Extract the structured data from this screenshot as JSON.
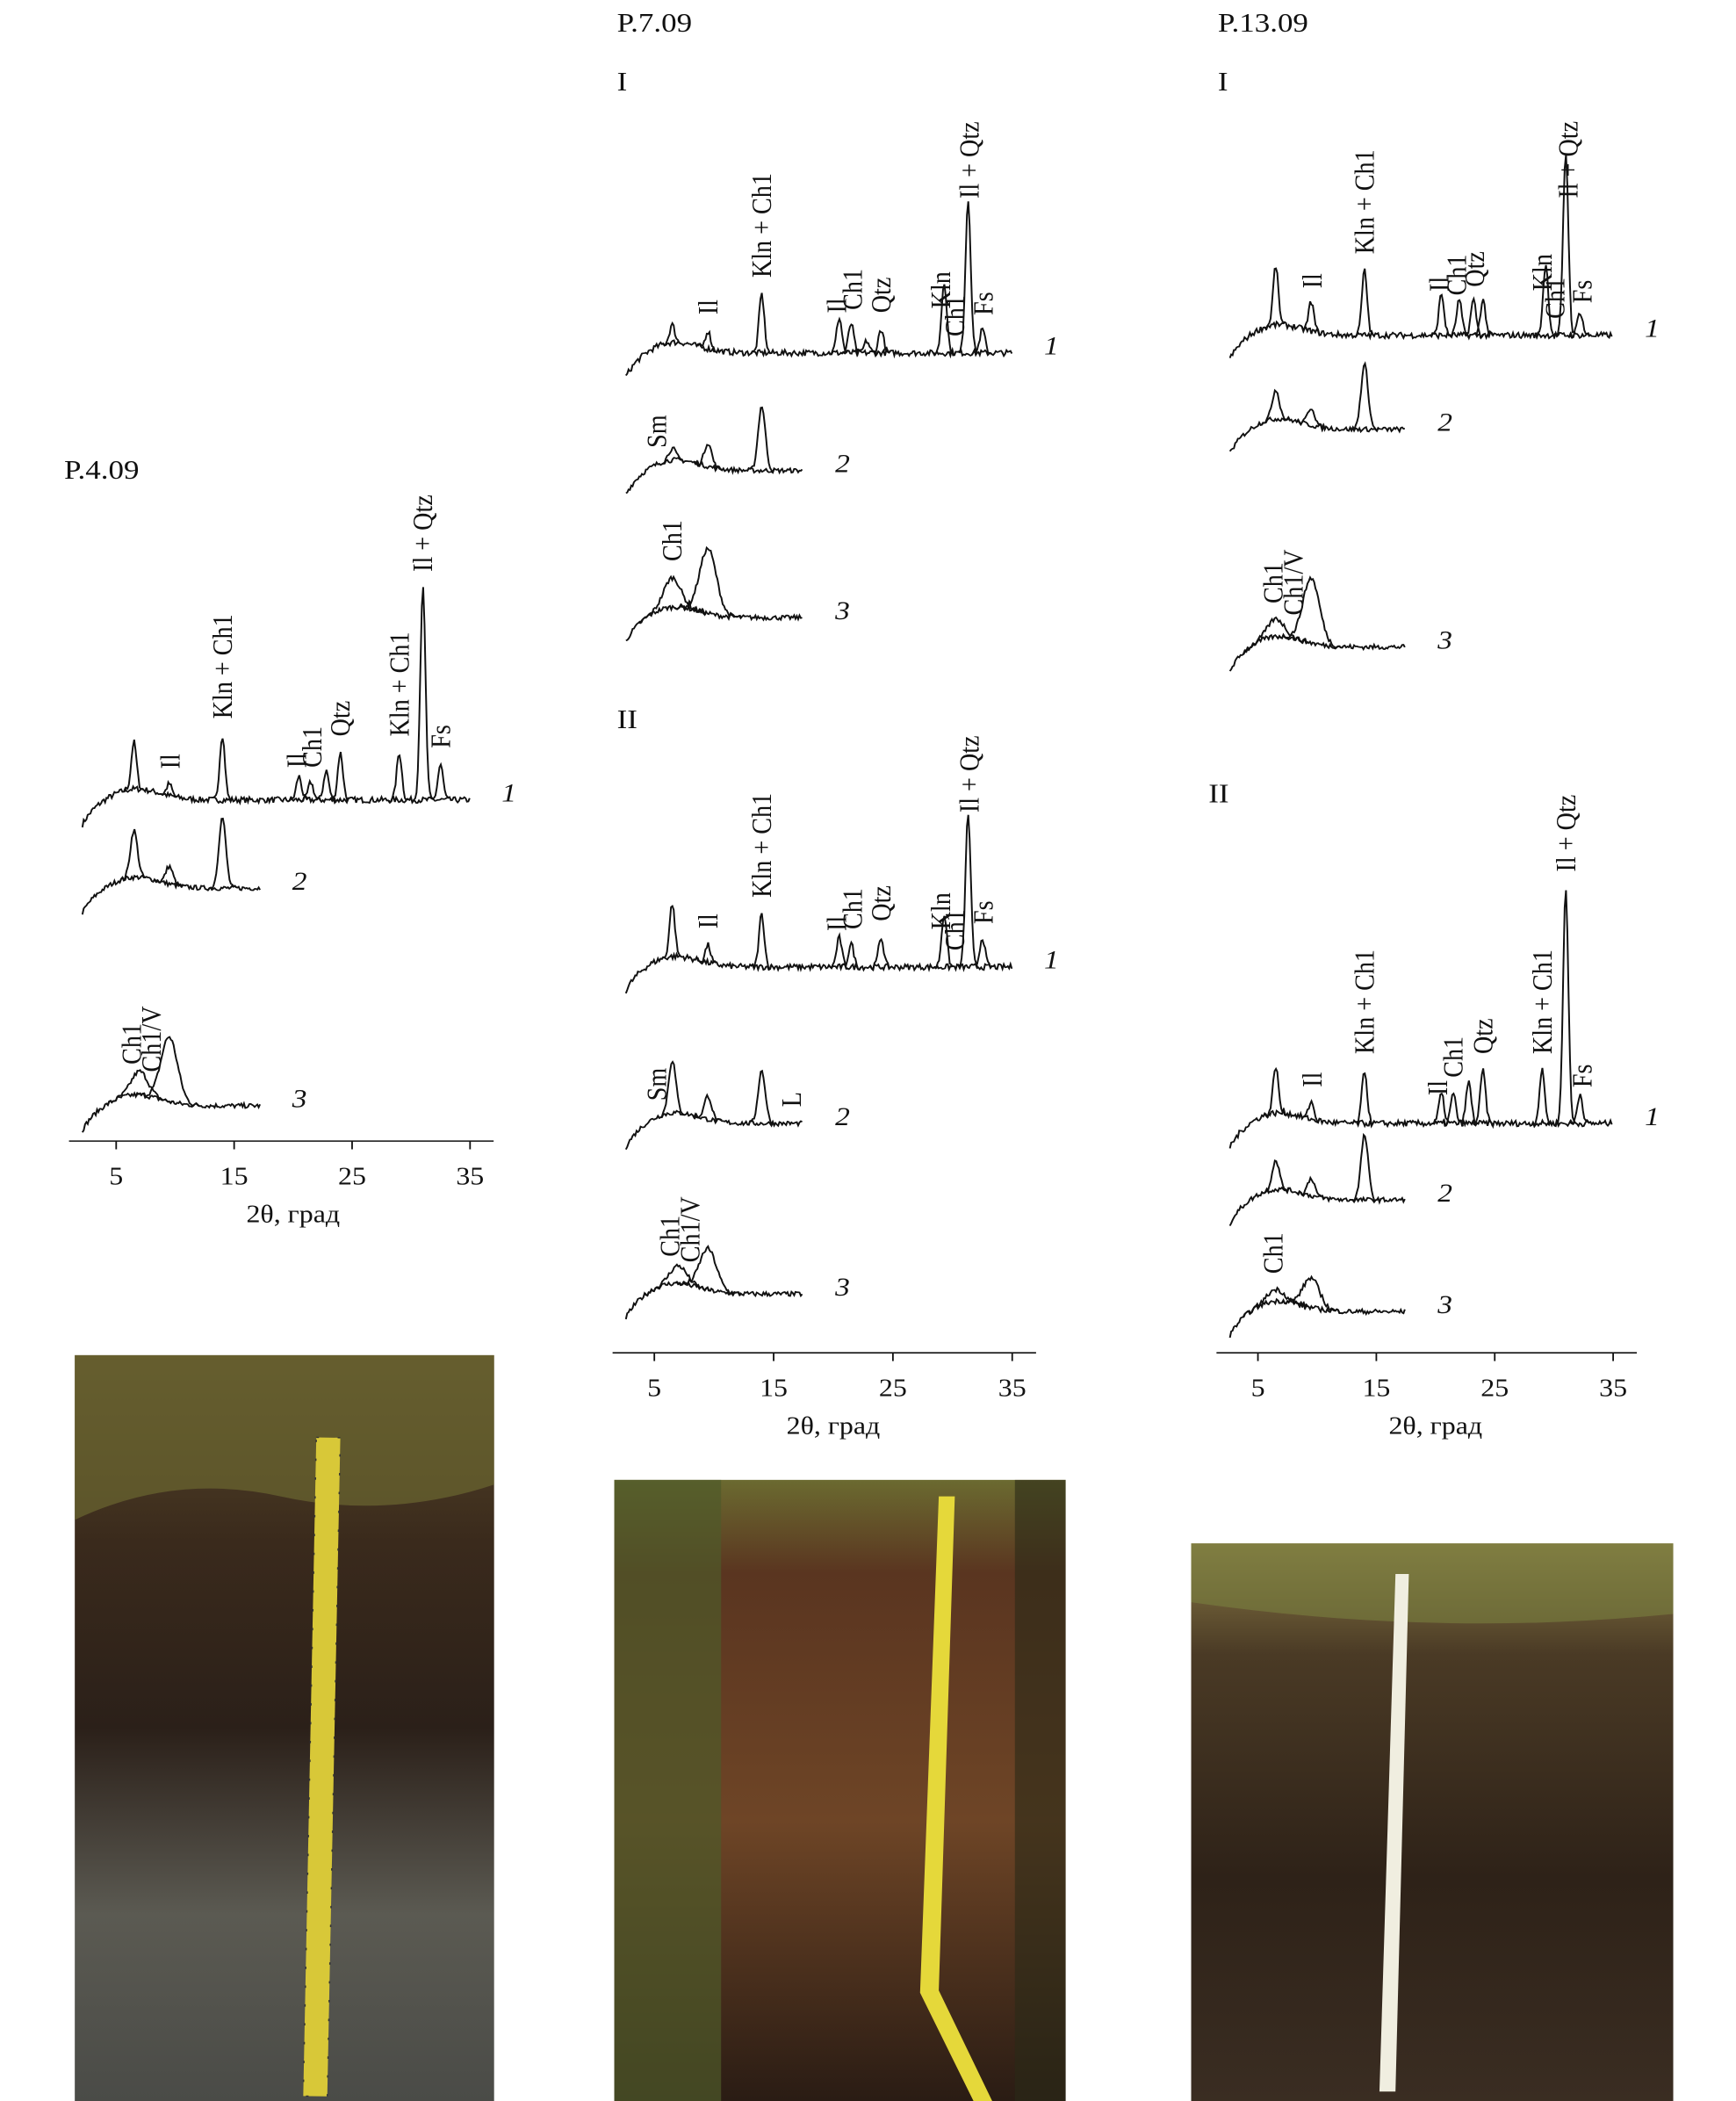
{
  "panels": [
    {
      "title": "P.4.09",
      "axis": {
        "xlim": [
          1,
          37
        ],
        "ticks": [
          5,
          15,
          25,
          35
        ],
        "label": "2θ, град"
      },
      "sections": [
        {
          "traces": [
            {
              "label": "1",
              "peaks": [
                [
                  6.5,
                  40
                ],
                [
                  9.5,
                  10
                ],
                [
                  14,
                  55
                ],
                [
                  20.5,
                  20
                ],
                [
                  21.5,
                  15
                ],
                [
                  22.8,
                  25
                ],
                [
                  24,
                  40
                ],
                [
                  29,
                  40
                ],
                [
                  31,
                  180
                ],
                [
                  32.5,
                  30
                ]
              ],
              "annotations": [
                {
                  "text": "Il",
                  "pos": 9.6
                },
                {
                  "text": "Kln + Ch1",
                  "pos": 14
                },
                {
                  "text": "Il",
                  "pos": 20.3
                },
                {
                  "text": "Ch1",
                  "pos": 21.6
                },
                {
                  "text": "Qtz",
                  "pos": 24
                },
                {
                  "text": "Kln + Ch1",
                  "pos": 29
                },
                {
                  "text": "Il + Qtz",
                  "pos": 31
                },
                {
                  "text": "Fs",
                  "pos": 32.5
                }
              ]
            },
            {
              "label": "2",
              "peaks": [
                [
                  6.5,
                  40
                ],
                [
                  9.5,
                  15
                ],
                [
                  14,
                  60
                ]
              ],
              "annotations": []
            },
            {
              "label": "3",
              "peaks": [
                [
                  7,
                  20
                ],
                [
                  9.5,
                  55
                ]
              ],
              "annotations": [
                {
                  "text": "Ch1",
                  "pos": 6.3
                },
                {
                  "text": "Ch1/V",
                  "pos": 8
                }
              ]
            }
          ]
        }
      ]
    },
    {
      "title": "P.7.09",
      "axis": {
        "xlim": [
          1.5,
          37
        ],
        "ticks": [
          5,
          15,
          25,
          35
        ],
        "label": "2θ, град"
      },
      "sections": [
        {
          "label": "I",
          "traces": [
            {
              "label": "1",
              "peaks": [
                [
                  6.5,
                  15
                ],
                [
                  9.5,
                  15
                ],
                [
                  14,
                  50
                ],
                [
                  20.5,
                  30
                ],
                [
                  21.5,
                  25
                ],
                [
                  22.8,
                  10
                ],
                [
                  24,
                  20
                ],
                [
                  29.3,
                  60
                ],
                [
                  31.3,
                  130
                ],
                [
                  32.5,
                  20
                ]
              ],
              "annotations": [
                {
                  "text": "Il",
                  "pos": 9.5
                },
                {
                  "text": "Kln + Ch1",
                  "pos": 14
                },
                {
                  "text": "Il",
                  "pos": 20.3
                },
                {
                  "text": "Ch1",
                  "pos": 21.6
                },
                {
                  "text": "Qtz",
                  "pos": 24
                },
                {
                  "text": "Kln",
                  "pos": 29
                },
                {
                  "text": "Ch1",
                  "pos": 30.2
                },
                {
                  "text": "Il + Qtz",
                  "pos": 31.4
                },
                {
                  "text": "Fs",
                  "pos": 32.6
                }
              ]
            },
            {
              "label": "2",
              "peaks": [
                [
                  6.5,
                  10
                ],
                [
                  9.5,
                  20
                ],
                [
                  14,
                  55
                ]
              ],
              "annotations": [
                {
                  "text": "Sm",
                  "pos": 5.2
                }
              ]
            },
            {
              "label": "3",
              "peaks": [
                [
                  6.5,
                  25
                ],
                [
                  9.5,
                  55
                ]
              ],
              "annotations": [
                {
                  "text": "Ch1",
                  "pos": 6.5
                }
              ]
            }
          ]
        },
        {
          "label": "II",
          "traces": [
            {
              "label": "1",
              "peaks": [
                [
                  6.5,
                  45
                ],
                [
                  9.5,
                  15
                ],
                [
                  14,
                  45
                ],
                [
                  20.5,
                  25
                ],
                [
                  21.5,
                  20
                ],
                [
                  24,
                  25
                ],
                [
                  29.3,
                  45
                ],
                [
                  31.3,
                  130
                ],
                [
                  32.5,
                  25
                ]
              ],
              "annotations": [
                {
                  "text": "Il",
                  "pos": 9.5
                },
                {
                  "text": "Kln + Ch1",
                  "pos": 14
                },
                {
                  "text": "Il",
                  "pos": 20.3
                },
                {
                  "text": "Ch1",
                  "pos": 21.6
                },
                {
                  "text": "Qtz",
                  "pos": 24
                },
                {
                  "text": "Kln",
                  "pos": 29
                },
                {
                  "text": "Ch1",
                  "pos": 30.2
                },
                {
                  "text": "Il + Qtz",
                  "pos": 31.4
                },
                {
                  "text": "Fs",
                  "pos": 32.6
                }
              ]
            },
            {
              "label": "2",
              "peaks": [
                [
                  6.5,
                  45
                ],
                [
                  9.5,
                  20
                ],
                [
                  14,
                  45
                ]
              ],
              "annotations": [
                {
                  "text": "Sm",
                  "pos": 5.2
                },
                {
                  "text": "L",
                  "pos": 16.5
                }
              ]
            },
            {
              "label": "3",
              "peaks": [
                [
                  7,
                  15
                ],
                [
                  9.5,
                  35
                ]
              ],
              "annotations": [
                {
                  "text": "Ch1",
                  "pos": 6.3
                },
                {
                  "text": "Ch1/V",
                  "pos": 8
                }
              ]
            }
          ]
        }
      ]
    },
    {
      "title": "P.13.09",
      "axis": {
        "xlim": [
          1.5,
          37
        ],
        "ticks": [
          5,
          15,
          25,
          35
        ],
        "label": "2θ, град"
      },
      "sections": [
        {
          "label": "I",
          "traces": [
            {
              "label": "1",
              "peaks": [
                [
                  6.5,
                  50
                ],
                [
                  9.5,
                  25
                ],
                [
                  14,
                  55
                ],
                [
                  20.5,
                  35
                ],
                [
                  22,
                  30
                ],
                [
                  23.2,
                  30
                ],
                [
                  24,
                  30
                ],
                [
                  29.3,
                  60
                ],
                [
                  31,
                  155
                ],
                [
                  32.2,
                  20
                ]
              ],
              "annotations": [
                {
                  "text": "Il",
                  "pos": 9.6
                },
                {
                  "text": "Kln + Ch1",
                  "pos": 14
                },
                {
                  "text": "Il",
                  "pos": 20.3
                },
                {
                  "text": "Ch1",
                  "pos": 21.8
                },
                {
                  "text": "Qtz",
                  "pos": 23.3
                },
                {
                  "text": "Kln",
                  "pos": 29
                },
                {
                  "text": "Ch1",
                  "pos": 30.1
                },
                {
                  "text": "Il + Qtz",
                  "pos": 31.2
                },
                {
                  "text": "Fs",
                  "pos": 32.4
                }
              ]
            },
            {
              "label": "2",
              "peaks": [
                [
                  6.5,
                  25
                ],
                [
                  9.5,
                  15
                ],
                [
                  14,
                  55
                ]
              ],
              "annotations": []
            },
            {
              "label": "3",
              "peaks": [
                [
                  6.5,
                  15
                ],
                [
                  9.5,
                  55
                ]
              ],
              "annotations": [
                {
                  "text": "Ch1",
                  "pos": 6.3
                },
                {
                  "text": "Ch1/V",
                  "pos": 8
                }
              ]
            }
          ]
        },
        {
          "label": "II",
          "traces": [
            {
              "label": "1",
              "peaks": [
                [
                  6.5,
                  40
                ],
                [
                  9.5,
                  15
                ],
                [
                  14,
                  45
                ],
                [
                  20.5,
                  25
                ],
                [
                  21.5,
                  25
                ],
                [
                  22.8,
                  35
                ],
                [
                  24,
                  45
                ],
                [
                  29,
                  45
                ],
                [
                  31,
                  200
                ],
                [
                  32.2,
                  25
                ]
              ],
              "annotations": [
                {
                  "text": "Il",
                  "pos": 9.6
                },
                {
                  "text": "Kln + Ch1",
                  "pos": 14
                },
                {
                  "text": "Il",
                  "pos": 20.2
                },
                {
                  "text": "Ch1",
                  "pos": 21.5
                },
                {
                  "text": "Qtz",
                  "pos": 24
                },
                {
                  "text": "Kln + Ch1",
                  "pos": 29
                },
                {
                  "text": "Il + Qtz",
                  "pos": 31
                },
                {
                  "text": "Fs",
                  "pos": 32.4
                }
              ]
            },
            {
              "label": "2",
              "peaks": [
                [
                  6.5,
                  25
                ],
                [
                  9.5,
                  15
                ],
                [
                  14,
                  55
                ]
              ],
              "annotations": []
            },
            {
              "label": "3",
              "peaks": [
                [
                  6.5,
                  10
                ],
                [
                  9.5,
                  25
                ]
              ],
              "annotations": [
                {
                  "text": "Ch1",
                  "pos": 6.3
                }
              ]
            }
          ]
        }
      ]
    }
  ]
}
